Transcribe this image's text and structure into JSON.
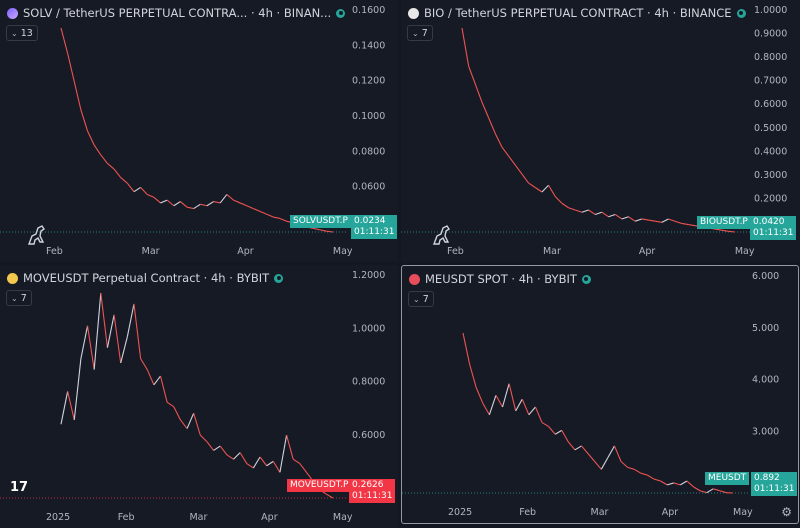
{
  "colors": {
    "background": "#131722",
    "panel": "#161a25",
    "line": "#d1d4dc",
    "down_line": "#ef5350",
    "up_tag": "#26a69a",
    "down_tag": "#f23645",
    "axis_text": "#b2b5be"
  },
  "panels": [
    {
      "title": "SOLV / TetherUS PERPETUAL CONTRA... · 4h · BINAN...",
      "indicator_count": "13",
      "icon": "solv-coin-icon",
      "symbol_tag": "SOLVUSDT.P",
      "last_price": "0.0234",
      "countdown": "01:11:31",
      "tag_color": "#26a69a",
      "y_ticks": [
        "0.1600",
        "0.1400",
        "0.1200",
        "0.1000",
        "0.0800",
        "0.0600",
        "0.0400"
      ],
      "x_ticks": [
        "Feb",
        "Mar",
        "Apr",
        "May"
      ],
      "chart_data": {
        "type": "line",
        "ylim": [
          0.0234,
          0.168
        ],
        "y": [
          0.168,
          0.15,
          0.13,
          0.11,
          0.095,
          0.085,
          0.078,
          0.072,
          0.068,
          0.062,
          0.058,
          0.052,
          0.055,
          0.05,
          0.048,
          0.044,
          0.046,
          0.042,
          0.045,
          0.041,
          0.04,
          0.043,
          0.042,
          0.045,
          0.044,
          0.05,
          0.046,
          0.044,
          0.042,
          0.04,
          0.038,
          0.036,
          0.034,
          0.033,
          0.031,
          0.03,
          0.029,
          0.027,
          0.026,
          0.025,
          0.024,
          0.0234
        ]
      }
    },
    {
      "title": "BIO / TetherUS PERPETUAL CONTRACT · 4h · BINANCE",
      "indicator_count": "7",
      "icon": "bio-coin-icon",
      "symbol_tag": "BIOUSDT.P",
      "last_price": "0.0420",
      "countdown": "01:11:31",
      "tag_color": "#26a69a",
      "y_ticks": [
        "1.0000",
        "0.9000",
        "0.8000",
        "0.7000",
        "0.6000",
        "0.5000",
        "0.4000",
        "0.3000",
        "0.2000",
        "0.1000"
      ],
      "x_ticks": [
        "Feb",
        "Mar",
        "Apr",
        "May"
      ],
      "chart_data": {
        "type": "line",
        "ylim": [
          0.042,
          0.95
        ],
        "y": [
          0.95,
          0.78,
          0.7,
          0.62,
          0.55,
          0.48,
          0.42,
          0.38,
          0.34,
          0.3,
          0.26,
          0.24,
          0.22,
          0.25,
          0.2,
          0.17,
          0.15,
          0.14,
          0.13,
          0.14,
          0.12,
          0.13,
          0.11,
          0.12,
          0.1,
          0.11,
          0.09,
          0.1,
          0.095,
          0.09,
          0.085,
          0.1,
          0.09,
          0.08,
          0.075,
          0.07,
          0.065,
          0.06,
          0.055,
          0.05,
          0.045,
          0.042
        ]
      }
    },
    {
      "title": "MOVEUSDT Perpetual Contract · 4h · BYBIT",
      "indicator_count": "7",
      "icon": "move-coin-icon",
      "symbol_tag": "MOVEUSDT.P",
      "last_price": "0.2626",
      "countdown": "01:11:31",
      "tag_color": "#f23645",
      "y_ticks": [
        "1.2000",
        "1.0000",
        "0.8000",
        "0.6000",
        "0.4000"
      ],
      "x_ticks": [
        "2025",
        "Feb",
        "Mar",
        "Apr",
        "May"
      ],
      "chart_data": {
        "type": "line",
        "ylim": [
          0.2626,
          1.2
        ],
        "y": [
          0.6,
          0.75,
          0.62,
          0.9,
          1.05,
          0.85,
          1.2,
          0.95,
          1.1,
          0.88,
          1.0,
          1.15,
          0.9,
          0.85,
          0.78,
          0.82,
          0.7,
          0.68,
          0.62,
          0.58,
          0.65,
          0.55,
          0.52,
          0.48,
          0.5,
          0.46,
          0.44,
          0.47,
          0.42,
          0.4,
          0.45,
          0.41,
          0.43,
          0.38,
          0.55,
          0.44,
          0.42,
          0.38,
          0.34,
          0.3,
          0.28,
          0.2626
        ]
      }
    },
    {
      "title": "MEUSDT SPOT · 4h · BYBIT",
      "indicator_count": "7",
      "icon": "me-coin-icon",
      "symbol_tag": "MEUSDT",
      "last_price": "0.892",
      "countdown": "01:11:31",
      "tag_color": "#26a69a",
      "y_ticks": [
        "6.000",
        "5.000",
        "4.000",
        "3.000",
        "2.000"
      ],
      "x_ticks": [
        "2025",
        "Feb",
        "Mar",
        "Apr",
        "May"
      ],
      "chart_data": {
        "type": "line",
        "ylim": [
          0.892,
          6.0
        ],
        "y": [
          5.0,
          4.2,
          3.6,
          3.2,
          2.9,
          3.4,
          3.1,
          3.7,
          3.0,
          3.3,
          2.9,
          3.1,
          2.7,
          2.6,
          2.4,
          2.5,
          2.2,
          2.0,
          2.1,
          1.9,
          1.7,
          1.5,
          1.8,
          2.1,
          1.7,
          1.55,
          1.5,
          1.4,
          1.35,
          1.25,
          1.2,
          1.1,
          1.15,
          1.1,
          1.2,
          1.05,
          0.95,
          0.9,
          1.0,
          0.95,
          0.9,
          0.892
        ]
      }
    }
  ]
}
